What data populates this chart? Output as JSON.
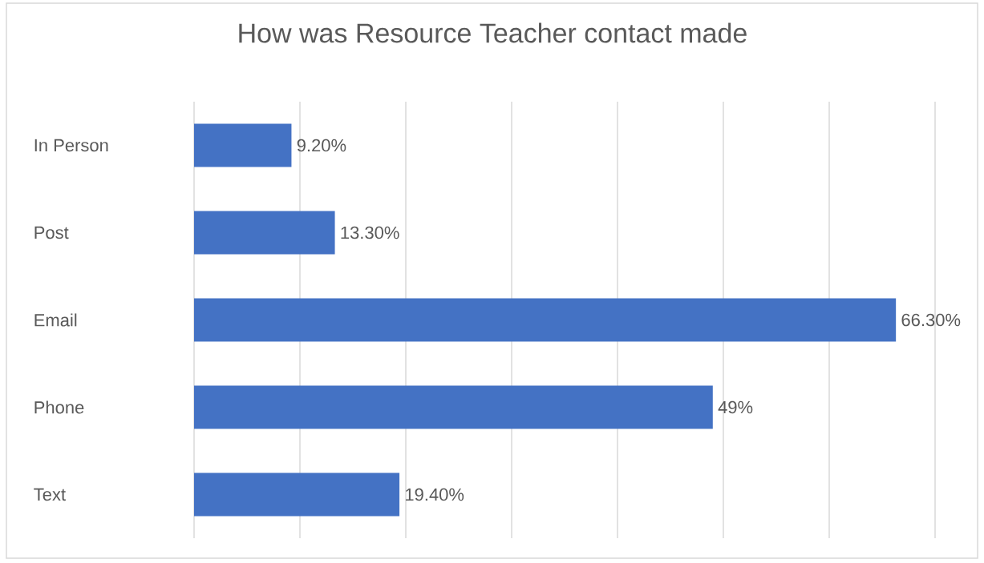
{
  "chart_data": {
    "type": "bar",
    "orientation": "horizontal",
    "title": "How was Resource Teacher contact made",
    "categories": [
      "In Person",
      "Post",
      "Email",
      "Phone",
      "Text"
    ],
    "values": [
      9.2,
      13.3,
      66.3,
      49,
      19.4
    ],
    "value_labels": [
      "9.20%",
      "13.30%",
      "66.30%",
      "49%",
      "19.40%"
    ],
    "color": "#4472c4",
    "xlim": [
      0,
      70
    ],
    "xticks": [
      {
        "value": 0,
        "label": null
      },
      {
        "value": 10,
        "label": null
      },
      {
        "value": 20,
        "label": null
      },
      {
        "value": 30,
        "label": null
      },
      {
        "value": 40,
        "label": null
      },
      {
        "value": 50,
        "label": null
      },
      {
        "value": 60,
        "label": null
      },
      {
        "value": 70,
        "label": null
      }
    ],
    "grid": "x",
    "tick_labels": "y"
  }
}
